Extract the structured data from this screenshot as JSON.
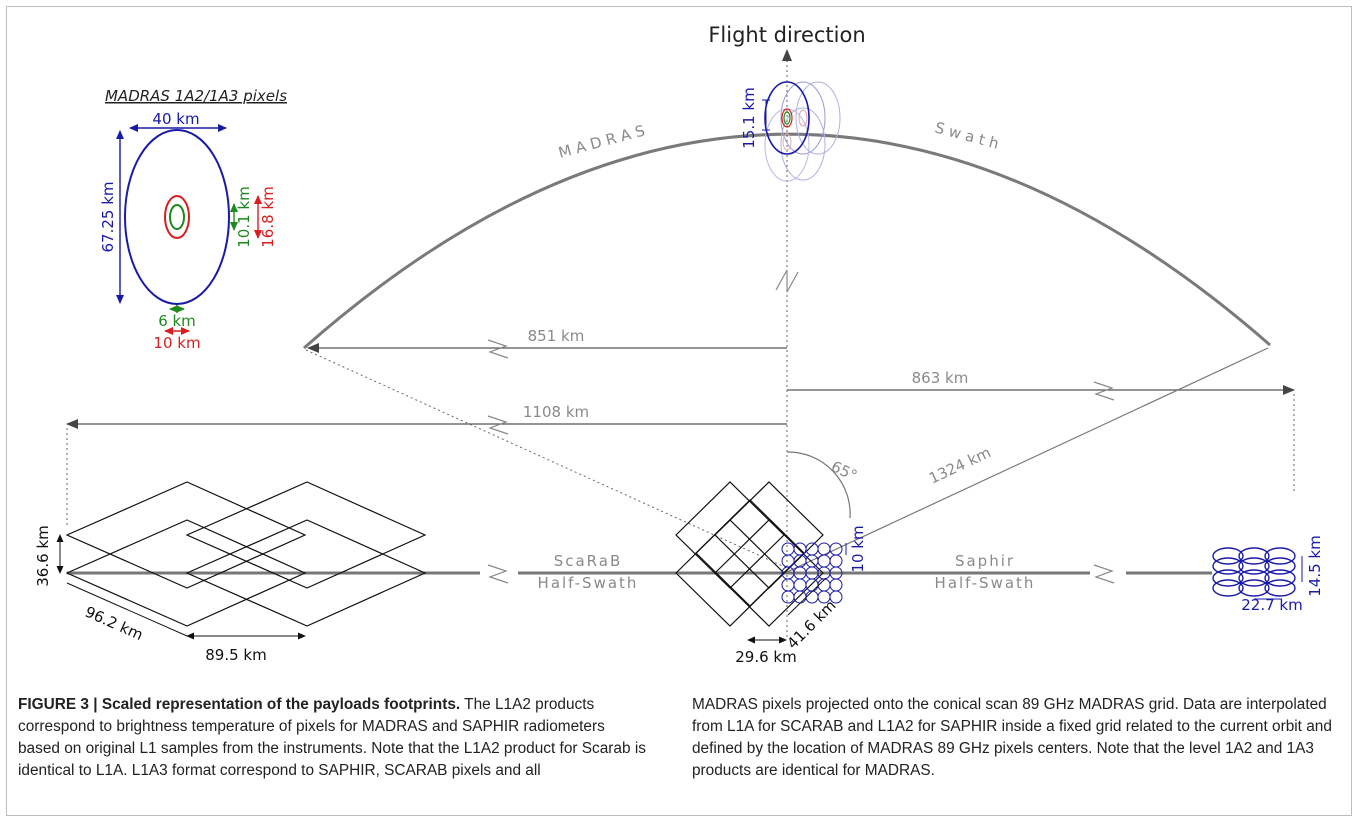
{
  "diagram": {
    "flight_direction": "Flight direction",
    "madras_swath_left": "M A D R A S",
    "madras_swath_right": "S w a t h",
    "inset_title": "MADRAS 1A2/1A3 pixels",
    "inset_40km": "40 km",
    "inset_67km": "67.25 km",
    "inset_10_1km": "10.1 km",
    "inset_16_8km": "16.8 km",
    "inset_6km": "6 km",
    "inset_10km": "10 km",
    "label_15_1km": "15.1 km",
    "label_851km": "851 km",
    "label_863km": "863 km",
    "label_1108km": "1108 km",
    "label_65deg": "65°",
    "label_1324km": "1324 km",
    "label_36_6km": "36.6 km",
    "label_96_2km": "96.2 km",
    "label_89_5km": "89.5 km",
    "scarab_label_1": "ScaRaB",
    "scarab_label_2": "Half-Swath",
    "saphir_label_1": "Saphir",
    "saphir_label_2": "Half-Swath",
    "label_10km_center": "10 km",
    "label_41_6km": "41.6 km",
    "label_29_6km": "29.6 km",
    "label_14_5km": "14.5 km",
    "label_22_7km": "22.7 km",
    "colors": {
      "madras_blue": "#1a1aa8",
      "green": "#1e8a1e",
      "red": "#d81e1e",
      "gray": "#8a8a8a"
    }
  },
  "caption": {
    "title": "FIGURE 3 | Scaled representation of the payloads footprints.",
    "left_text": " The L1A2 products correspond to brightness temperature of pixels for MADRAS and SAPHIR radiometers based on original L1 samples from the instruments. Note that the L1A2 product for Scarab is identical to L1A. L1A3 format correspond to SAPHIR, SCARAB pixels and all",
    "right_text": "MADRAS pixels projected onto the conical scan 89 GHz MADRAS grid. Data are interpolated from L1A for SCARAB and L1A2 for SAPHIR inside a fixed grid related to the current orbit and defined by the location of MADRAS 89 GHz pixels centers. Note that the level 1A2 and 1A3 products are identical for MADRAS."
  }
}
